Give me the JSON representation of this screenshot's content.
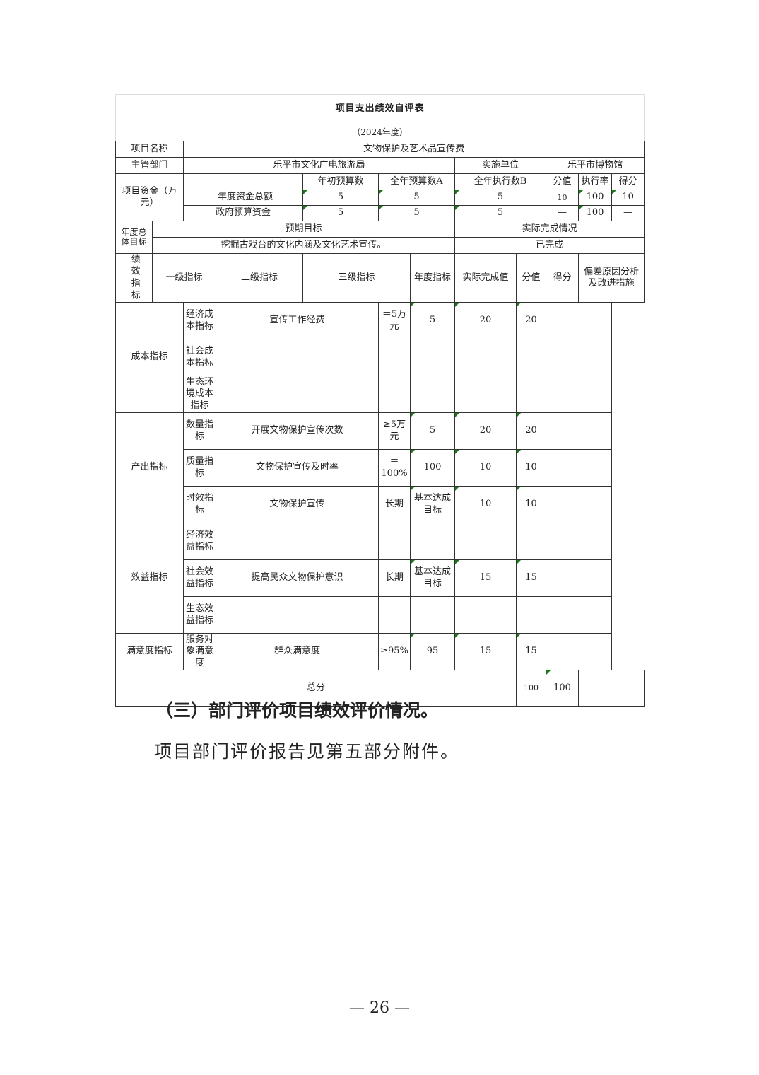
{
  "title": "项目支出绩效自评表",
  "year": "（2024年度）",
  "project": {
    "name_label": "项目名称",
    "name": "文物保护及艺术品宣传费",
    "dept_label": "主管部门",
    "dept": "乐平市文化广电旅游局",
    "unit_label": "实施单位",
    "unit": "乐平市博物馆"
  },
  "funds": {
    "label": "项目资金（万元）",
    "headers": [
      "年初预算数",
      "全年预算数A",
      "全年执行数B",
      "分值",
      "执行率",
      "得分"
    ],
    "rows": [
      {
        "label": "年度资金总额",
        "values": [
          "5",
          "5",
          "5",
          "10",
          "100",
          "10"
        ]
      },
      {
        "label": "政府预算资金",
        "values": [
          "5",
          "5",
          "5",
          "—",
          "100",
          "—"
        ]
      }
    ]
  },
  "goal": {
    "label": "年度总体目标",
    "expected_label": "预期目标",
    "actual_label": "实际完成情况",
    "expected": "挖掘古戏台的文化内涵及文化艺术宣传。",
    "actual": "已完成"
  },
  "perf": {
    "label": "绩效指标",
    "headers": [
      "一级指标",
      "二级指标",
      "三级指标",
      "年度指标",
      "实际完成值",
      "分值",
      "得分",
      "偏差原因分析及改进措施"
    ],
    "groups": [
      "成本指标",
      "产出指标",
      "效益指标",
      "满意度指标"
    ],
    "rows": [
      {
        "l2": "经济成本指标",
        "l3": "宣传工作经费",
        "target": "＝5万元",
        "actual": "5",
        "weight": "20",
        "score": "20",
        "note": ""
      },
      {
        "l2": "社会成本指标",
        "l3": "",
        "target": "",
        "actual": "",
        "weight": "",
        "score": "",
        "note": ""
      },
      {
        "l2": "生态环境成本指标",
        "l3": "",
        "target": "",
        "actual": "",
        "weight": "",
        "score": "",
        "note": ""
      },
      {
        "l2": "数量指标",
        "l3": "开展文物保护宣传次数",
        "target": "≥5万元",
        "actual": "5",
        "weight": "20",
        "score": "20",
        "note": ""
      },
      {
        "l2": "质量指标",
        "l3": "文物保护宣传及时率",
        "target": "＝100%",
        "actual": "100",
        "weight": "10",
        "score": "10",
        "note": ""
      },
      {
        "l2": "时效指标",
        "l3": "文物保护宣传",
        "target": "长期",
        "actual": "基本达成目标",
        "weight": "10",
        "score": "10",
        "note": ""
      },
      {
        "l2": "经济效益指标",
        "l3": "",
        "target": "",
        "actual": "",
        "weight": "",
        "score": "",
        "note": ""
      },
      {
        "l2": "社会效益指标",
        "l3": "提高民众文物保护意识",
        "target": "长期",
        "actual": "基本达成目标",
        "weight": "15",
        "score": "15",
        "note": ""
      },
      {
        "l2": "生态效益指标",
        "l3": "",
        "target": "",
        "actual": "",
        "weight": "",
        "score": "",
        "note": ""
      },
      {
        "l2": "服务对象满意度",
        "l3": "群众满意度",
        "target": "≥95%",
        "actual": "95",
        "weight": "15",
        "score": "15",
        "note": ""
      }
    ],
    "total_label": "总分",
    "total_weight": "100",
    "total_score": "100"
  },
  "section_heading": "（三）部门评价项目绩效评价情况。",
  "paragraph": "项目部门评价报告见第五部分附件。",
  "page_number": "— 26 —"
}
